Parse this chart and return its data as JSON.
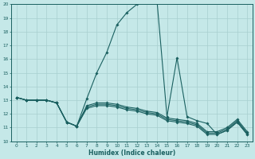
{
  "xlabel": "Humidex (Indice chaleur)",
  "xlim_min": -0.5,
  "xlim_max": 23.5,
  "ylim_min": 10,
  "ylim_max": 20,
  "xticks": [
    0,
    1,
    2,
    3,
    4,
    5,
    6,
    7,
    8,
    9,
    10,
    11,
    12,
    13,
    14,
    15,
    16,
    17,
    18,
    19,
    20,
    21,
    22,
    23
  ],
  "yticks": [
    10,
    11,
    12,
    13,
    14,
    15,
    16,
    17,
    18,
    19,
    20
  ],
  "bg_color": "#c5e8e8",
  "line_color": "#1a6060",
  "grid_color": "#a8cfcf",
  "curve_main_x": [
    0,
    1,
    2,
    3,
    4,
    5,
    6,
    7,
    8,
    9,
    10,
    11,
    12,
    13,
    14,
    15,
    16,
    17,
    18,
    19,
    20,
    21,
    22,
    23
  ],
  "curve_main_y": [
    13.2,
    13.0,
    13.0,
    13.0,
    12.8,
    11.4,
    11.1,
    13.1,
    15.0,
    16.5,
    18.5,
    19.4,
    20.0,
    20.2,
    20.3,
    11.8,
    16.1,
    11.8,
    11.5,
    11.3,
    10.5,
    10.8,
    11.4,
    10.5
  ],
  "curve_flat1_x": [
    0,
    1,
    2,
    3,
    4,
    5,
    6,
    7,
    8,
    9,
    10,
    11,
    12,
    13,
    14,
    15,
    16,
    17,
    18,
    19,
    20,
    21,
    22,
    23
  ],
  "curve_flat1_y": [
    13.2,
    13.0,
    13.0,
    13.0,
    12.8,
    11.4,
    11.1,
    12.4,
    12.6,
    12.6,
    12.5,
    12.3,
    12.2,
    12.0,
    11.9,
    11.5,
    11.4,
    11.3,
    11.1,
    10.5,
    10.5,
    10.8,
    11.4,
    10.5
  ],
  "curve_flat2_x": [
    0,
    1,
    2,
    3,
    4,
    5,
    6,
    7,
    8,
    9,
    10,
    11,
    12,
    13,
    14,
    15,
    16,
    17,
    18,
    19,
    20,
    21,
    22,
    23
  ],
  "curve_flat2_y": [
    13.2,
    13.0,
    13.0,
    13.0,
    12.8,
    11.4,
    11.1,
    12.5,
    12.7,
    12.7,
    12.6,
    12.4,
    12.3,
    12.1,
    12.0,
    11.6,
    11.5,
    11.4,
    11.2,
    10.6,
    10.6,
    10.9,
    11.5,
    10.6
  ],
  "curve_flat3_x": [
    0,
    1,
    2,
    3,
    4,
    5,
    6,
    7,
    8,
    9,
    10,
    11,
    12,
    13,
    14,
    15,
    16,
    17,
    18,
    19,
    20,
    21,
    22,
    23
  ],
  "curve_flat3_y": [
    13.2,
    13.0,
    13.0,
    13.0,
    12.8,
    11.4,
    11.1,
    12.6,
    12.8,
    12.8,
    12.7,
    12.5,
    12.4,
    12.2,
    12.1,
    11.7,
    11.6,
    11.5,
    11.3,
    10.7,
    10.7,
    11.0,
    11.6,
    10.7
  ]
}
